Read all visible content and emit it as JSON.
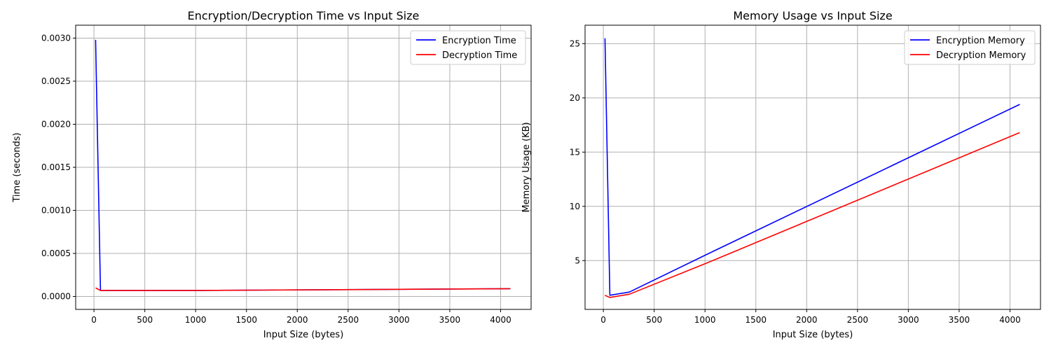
{
  "chart_data": [
    {
      "type": "line",
      "title": "Encryption/Decryption Time vs Input Size",
      "xlabel": "Input Size (bytes)",
      "ylabel": "Time (seconds)",
      "xlim": [
        -180,
        4300
      ],
      "ylim": [
        -0.00015,
        0.00315
      ],
      "xticks": [
        0,
        500,
        1000,
        1500,
        2000,
        2500,
        3000,
        3500,
        4000
      ],
      "yticks": [
        0.0,
        0.0005,
        0.001,
        0.0015,
        0.002,
        0.0025,
        0.003
      ],
      "ytick_labels": [
        "0.0000",
        "0.0005",
        "0.0010",
        "0.0015",
        "0.0020",
        "0.0025",
        "0.0030"
      ],
      "grid": true,
      "legend_position": "top-right",
      "x": [
        16,
        64,
        256,
        1024,
        4096
      ],
      "series": [
        {
          "name": "Encryption Time",
          "color": "#0000ff",
          "values": [
            0.00298,
            7e-05,
            7e-05,
            7e-05,
            9e-05
          ]
        },
        {
          "name": "Decryption Time",
          "color": "#ff0000",
          "values": [
            0.0001,
            7e-05,
            7e-05,
            7e-05,
            9e-05
          ]
        }
      ]
    },
    {
      "type": "line",
      "title": "Memory Usage vs Input Size",
      "xlabel": "Input Size (bytes)",
      "ylabel": "Memory Usage (KB)",
      "xlim": [
        -180,
        4300
      ],
      "ylim": [
        0.5,
        26.7
      ],
      "xticks": [
        0,
        500,
        1000,
        1500,
        2000,
        2500,
        3000,
        3500,
        4000
      ],
      "yticks": [
        5,
        10,
        15,
        20,
        25
      ],
      "ytick_labels": [
        "5",
        "10",
        "15",
        "20",
        "25"
      ],
      "grid": true,
      "legend_position": "top-right",
      "x": [
        16,
        64,
        256,
        1024,
        4096
      ],
      "series": [
        {
          "name": "Encryption Memory",
          "color": "#0000ff",
          "values": [
            25.5,
            1.8,
            2.1,
            5.6,
            19.4
          ]
        },
        {
          "name": "Decryption Memory",
          "color": "#ff0000",
          "values": [
            1.8,
            1.6,
            1.9,
            4.8,
            16.8
          ]
        }
      ]
    }
  ]
}
